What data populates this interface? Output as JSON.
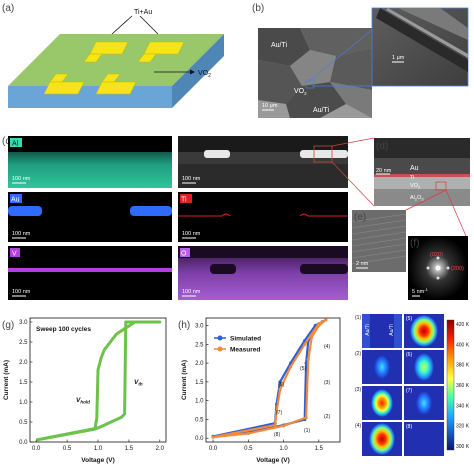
{
  "panels": {
    "a": {
      "label": "(a)",
      "electrode_label": "Ti+Au",
      "substrate_label": "VO",
      "substrate_sub": "2"
    },
    "b": {
      "label": "(b)",
      "labels": [
        "Au/Ti",
        "VO",
        "Au/Ti"
      ],
      "vo_sub": "2",
      "scale_main": "10 μm",
      "scale_inset": "1 μm"
    },
    "c": {
      "label": "(c)",
      "maps": [
        {
          "element": "Al",
          "color": "#3ed8b0",
          "scale": "100 nm"
        },
        {
          "element": "Au",
          "color": "#2f6bff",
          "scale": "100 nm"
        },
        {
          "element": "V",
          "color": "#b23fe0",
          "scale": "100 nm"
        }
      ],
      "maps_right": [
        {
          "element": "",
          "scale": "100 nm"
        },
        {
          "element": "Ti",
          "color": "#e02020",
          "scale": "100 nm"
        },
        {
          "element": "O",
          "color": "#b860e8",
          "scale": "100 nm"
        }
      ]
    },
    "d": {
      "label": "(d)",
      "layers": [
        "Au",
        "Ti",
        "VO",
        "Al",
        "O"
      ],
      "vo_sub": "2",
      "al_o_sub": [
        "2",
        "3"
      ],
      "scale": "20 nm"
    },
    "e": {
      "label": "(e)",
      "scale": "2 nm"
    },
    "f": {
      "label": "(f)",
      "spots": [
        "(020)",
        "(200)"
      ],
      "scale": "5 nm",
      "scale_sup": "-1"
    },
    "g": {
      "label": "(g)",
      "legend": "Sweep 100 cycles",
      "vhold": "V",
      "vhold_sub": "hold",
      "vth": "V",
      "vth_sub": "th"
    },
    "h": {
      "label": "(h)",
      "legend": [
        "Simulated",
        "Measured"
      ],
      "points": [
        "(1)",
        "(2)",
        "(3)",
        "(4)",
        "(5)",
        "(6)",
        "(7)",
        "(8)"
      ]
    },
    "i": {
      "cell_labels": [
        "(1)",
        "(2)",
        "(3)",
        "(4)",
        "(5)",
        "(6)",
        "(7)",
        "(8)"
      ],
      "electrode_labels": [
        "Au/Ti",
        "Au/Ti"
      ],
      "colorbar_ticks": [
        "420 K",
        "400 K",
        "380 K",
        "360 K",
        "340 K",
        "320 K",
        "300 K"
      ]
    }
  },
  "chart_data": [
    {
      "type": "line",
      "panel": "g",
      "title": "",
      "xlabel": "Voltage (V)",
      "ylabel": "Current (mA)",
      "xlim": [
        -0.1,
        2.1
      ],
      "ylim": [
        0,
        3.1
      ],
      "xticks": [
        "0.0",
        "0.5",
        "1.0",
        "1.5",
        "2.0"
      ],
      "yticks": [
        "0.0",
        "0.5",
        "1.0",
        "1.5",
        "2.0",
        "2.5",
        "3.0"
      ],
      "series": [
        {
          "name": "",
          "color": "#6cc24a",
          "x": [
            0.0,
            1.0,
            1.38,
            1.43,
            1.45,
            1.5,
            1.6,
            1.8,
            2.0,
            2.0,
            1.6,
            1.3,
            1.1,
            1.05,
            1.0,
            0.98,
            0.95,
            0.0
          ],
          "y": [
            0.05,
            0.35,
            0.62,
            0.7,
            3.0,
            3.0,
            3.0,
            3.0,
            3.0,
            3.0,
            3.0,
            2.7,
            2.3,
            2.1,
            1.8,
            0.6,
            0.32,
            0.05
          ]
        }
      ]
    },
    {
      "type": "line",
      "panel": "h",
      "title": "",
      "xlabel": "Voltage (V)",
      "ylabel": "Current (mA)",
      "xlim": [
        -0.1,
        1.8
      ],
      "ylim": [
        -0.1,
        3.2
      ],
      "xticks": [
        "0.0",
        "0.5",
        "1.0",
        "1.5"
      ],
      "yticks": [
        "0.0",
        "0.5",
        "1.0",
        "1.5",
        "2.0",
        "2.5",
        "3.0"
      ],
      "series": [
        {
          "name": "Simulated",
          "color": "#2c5fd6",
          "x": [
            0.0,
            0.5,
            1.0,
            1.3,
            1.32,
            1.35,
            1.45,
            1.55,
            1.45,
            1.3,
            1.1,
            0.95,
            0.9,
            0.88,
            0.0
          ],
          "y": [
            0.05,
            0.15,
            0.35,
            0.5,
            2.0,
            2.6,
            2.9,
            3.1,
            3.0,
            2.6,
            2.0,
            1.5,
            0.9,
            0.4,
            0.05
          ]
        },
        {
          "name": "Measured",
          "color": "#f08a3c",
          "x": [
            0.0,
            0.5,
            1.0,
            1.32,
            1.35,
            1.4,
            1.5,
            1.6,
            1.5,
            1.3,
            1.1,
            0.95,
            0.9,
            0.88,
            0.0
          ],
          "y": [
            0.03,
            0.13,
            0.33,
            0.55,
            2.1,
            2.7,
            3.0,
            3.15,
            3.05,
            2.5,
            1.9,
            1.3,
            0.7,
            0.35,
            0.03
          ]
        }
      ]
    }
  ]
}
